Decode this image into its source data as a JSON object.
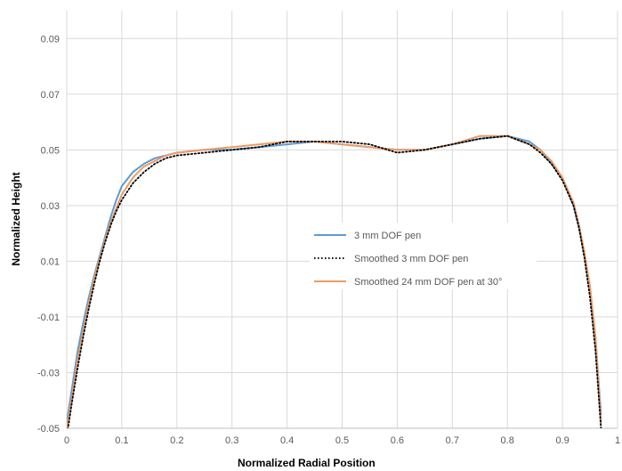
{
  "chart_data": {
    "type": "line",
    "title": "",
    "xlabel": "Normalized Radial Position",
    "ylabel": "Normalized Height",
    "xlim": [
      0,
      1
    ],
    "ylim": [
      -0.05,
      0.1
    ],
    "xticks": [
      "0",
      "0.1",
      "0.2",
      "0.3",
      "0.4",
      "0.5",
      "0.6",
      "0.7",
      "0.8",
      "0.9",
      "1"
    ],
    "yticks": [
      "-0.05",
      "-0.03",
      "-0.01",
      "0.01",
      "0.03",
      "0.05",
      "0.07",
      "0.09"
    ],
    "grid": true,
    "legend_position": "center-right",
    "series": [
      {
        "name": "3 mm DOF pen",
        "color": "#5b9bd5",
        "style": "solid",
        "x": [
          0.0,
          0.01,
          0.02,
          0.03,
          0.04,
          0.05,
          0.06,
          0.07,
          0.08,
          0.09,
          0.1,
          0.12,
          0.14,
          0.16,
          0.18,
          0.2,
          0.25,
          0.3,
          0.35,
          0.4,
          0.45,
          0.5,
          0.55,
          0.6,
          0.65,
          0.7,
          0.75,
          0.8,
          0.84,
          0.86,
          0.88,
          0.9,
          0.92,
          0.93,
          0.94,
          0.95,
          0.96,
          0.97
        ],
        "y": [
          -0.048,
          -0.035,
          -0.022,
          -0.012,
          -0.003,
          0.005,
          0.012,
          0.019,
          0.026,
          0.032,
          0.037,
          0.042,
          0.045,
          0.047,
          0.048,
          0.049,
          0.05,
          0.05,
          0.051,
          0.052,
          0.053,
          0.052,
          0.051,
          0.05,
          0.05,
          0.052,
          0.054,
          0.055,
          0.053,
          0.05,
          0.045,
          0.04,
          0.03,
          0.022,
          0.012,
          0.0,
          -0.018,
          -0.045
        ]
      },
      {
        "name": "Smoothed 3 mm DOF pen",
        "color": "#000000",
        "style": "dotted",
        "x": [
          0.0,
          0.01,
          0.02,
          0.03,
          0.04,
          0.05,
          0.06,
          0.07,
          0.08,
          0.09,
          0.1,
          0.12,
          0.14,
          0.16,
          0.18,
          0.2,
          0.25,
          0.3,
          0.35,
          0.4,
          0.45,
          0.5,
          0.55,
          0.6,
          0.65,
          0.7,
          0.75,
          0.8,
          0.84,
          0.86,
          0.88,
          0.9,
          0.92,
          0.93,
          0.94,
          0.95,
          0.96,
          0.97
        ],
        "y": [
          -0.053,
          -0.04,
          -0.028,
          -0.017,
          -0.007,
          0.002,
          0.01,
          0.017,
          0.023,
          0.028,
          0.032,
          0.038,
          0.042,
          0.045,
          0.047,
          0.048,
          0.049,
          0.05,
          0.051,
          0.053,
          0.053,
          0.053,
          0.052,
          0.049,
          0.05,
          0.052,
          0.054,
          0.055,
          0.052,
          0.049,
          0.045,
          0.039,
          0.03,
          0.022,
          0.011,
          -0.003,
          -0.022,
          -0.05
        ]
      },
      {
        "name": "Smoothed 24 mm DOF pen at 30°",
        "color": "#ed9b63",
        "style": "solid",
        "x": [
          0.0,
          0.01,
          0.02,
          0.03,
          0.04,
          0.05,
          0.06,
          0.07,
          0.08,
          0.09,
          0.1,
          0.12,
          0.14,
          0.16,
          0.18,
          0.2,
          0.25,
          0.3,
          0.35,
          0.4,
          0.45,
          0.5,
          0.55,
          0.6,
          0.65,
          0.7,
          0.75,
          0.8,
          0.84,
          0.86,
          0.88,
          0.9,
          0.92,
          0.93,
          0.94,
          0.95,
          0.96,
          0.97
        ],
        "y": [
          -0.05,
          -0.038,
          -0.025,
          -0.015,
          -0.005,
          0.004,
          0.011,
          0.018,
          0.024,
          0.029,
          0.034,
          0.04,
          0.044,
          0.046,
          0.048,
          0.049,
          0.05,
          0.051,
          0.052,
          0.053,
          0.053,
          0.052,
          0.051,
          0.05,
          0.05,
          0.052,
          0.055,
          0.055,
          0.052,
          0.05,
          0.046,
          0.04,
          0.031,
          0.023,
          0.013,
          0.001,
          -0.017,
          -0.048
        ]
      }
    ]
  }
}
